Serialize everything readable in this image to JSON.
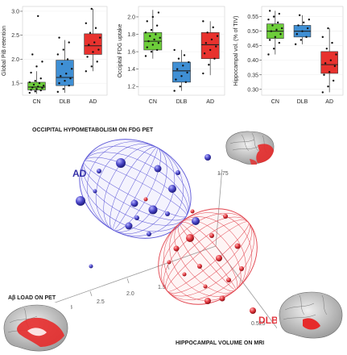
{
  "chart_data": [
    {
      "type": "box",
      "ylabel": "Global PiB retention",
      "categories": [
        "CN",
        "DLB",
        "AD"
      ],
      "yticks": [
        "1.5",
        "2.0",
        "2.5",
        "3.0"
      ],
      "ylim": [
        1.25,
        3.1
      ],
      "colors": [
        "#6dce3a",
        "#3f8fd4",
        "#e8322e"
      ],
      "boxes": [
        {
          "q1": 1.36,
          "median": 1.42,
          "q3": 1.52,
          "low": 1.28,
          "high": 1.75
        },
        {
          "q1": 1.45,
          "median": 1.62,
          "q3": 1.98,
          "low": 1.3,
          "high": 2.4
        },
        {
          "q1": 2.1,
          "median": 2.28,
          "q3": 2.53,
          "low": 1.75,
          "high": 3.05
        }
      ],
      "points": [
        [
          1.3,
          1.33,
          1.35,
          1.36,
          1.38,
          1.4,
          1.41,
          1.43,
          1.45,
          1.47,
          1.5,
          1.52,
          1.55,
          1.6,
          1.72,
          1.85,
          1.95,
          2.1,
          2.9
        ],
        [
          1.32,
          1.38,
          1.45,
          1.5,
          1.55,
          1.6,
          1.65,
          1.7,
          1.8,
          1.9,
          2.0,
          2.1,
          2.2,
          2.35,
          2.45
        ],
        [
          1.75,
          1.85,
          1.95,
          2.05,
          2.15,
          2.2,
          2.3,
          2.35,
          2.45,
          2.55,
          2.65,
          2.75,
          3.05
        ]
      ]
    },
    {
      "type": "box",
      "ylabel": "Occipital FDG uptake",
      "categories": [
        "CN",
        "DLB",
        "AD"
      ],
      "yticks": [
        "1.2",
        "1.4",
        "1.6",
        "1.8",
        "2.0"
      ],
      "ylim": [
        1.1,
        2.12
      ],
      "colors": [
        "#6dce3a",
        "#3f8fd4",
        "#e8322e"
      ],
      "boxes": [
        {
          "q1": 1.62,
          "median": 1.72,
          "q3": 1.82,
          "low": 1.52,
          "high": 2.08
        },
        {
          "q1": 1.25,
          "median": 1.38,
          "q3": 1.48,
          "low": 1.15,
          "high": 1.62
        },
        {
          "q1": 1.52,
          "median": 1.68,
          "q3": 1.82,
          "low": 1.33,
          "high": 1.95
        }
      ],
      "points": [
        [
          1.55,
          1.6,
          1.62,
          1.65,
          1.68,
          1.7,
          1.72,
          1.74,
          1.76,
          1.78,
          1.8,
          1.82,
          1.85,
          1.9,
          1.95,
          2.0,
          2.05
        ],
        [
          1.15,
          1.2,
          1.25,
          1.28,
          1.32,
          1.36,
          1.4,
          1.44,
          1.48,
          1.52,
          1.56,
          1.62
        ],
        [
          1.35,
          1.45,
          1.52,
          1.58,
          1.62,
          1.66,
          1.7,
          1.74,
          1.78,
          1.82,
          1.88,
          1.95
        ]
      ]
    },
    {
      "type": "box",
      "ylabel": "Hippocampal vol. (% of TIV)",
      "categories": [
        "CN",
        "DLB",
        "AD"
      ],
      "yticks": [
        "0.30",
        "0.35",
        "0.40",
        "0.45",
        "0.50",
        "0.55"
      ],
      "ylim": [
        0.28,
        0.585
      ],
      "colors": [
        "#6dce3a",
        "#3f8fd4",
        "#e8322e"
      ],
      "boxes": [
        {
          "q1": 0.475,
          "median": 0.5,
          "q3": 0.525,
          "low": 0.42,
          "high": 0.57
        },
        {
          "q1": 0.48,
          "median": 0.5,
          "q3": 0.52,
          "low": 0.455,
          "high": 0.555
        },
        {
          "q1": 0.355,
          "median": 0.385,
          "q3": 0.43,
          "low": 0.29,
          "high": 0.51
        }
      ],
      "points": [
        [
          0.42,
          0.44,
          0.46,
          0.47,
          0.48,
          0.49,
          0.5,
          0.505,
          0.51,
          0.52,
          0.53,
          0.54,
          0.55,
          0.56,
          0.57
        ],
        [
          0.455,
          0.47,
          0.48,
          0.49,
          0.5,
          0.51,
          0.52,
          0.53,
          0.54,
          0.555
        ],
        [
          0.29,
          0.31,
          0.33,
          0.35,
          0.36,
          0.38,
          0.39,
          0.4,
          0.42,
          0.44,
          0.46,
          0.48,
          0.51
        ]
      ]
    },
    {
      "type": "scatter3d",
      "axis_labels": {
        "fdg": "OCCIPITAL HYPOMETABOLISM ON FDG PET",
        "pib": "Aβ LOAD ON PET",
        "hippo": "HIPPOCAMPAL VOLUME ON MRI"
      },
      "group_labels": {
        "ad": "AD",
        "dlb": "DLB"
      },
      "group_colors": {
        "ad": "#4a46c8",
        "dlb": "#e2373f"
      },
      "tick_labels": [
        "1.75",
        "3",
        "2.5",
        "2.0",
        "1.5",
        "0.525"
      ]
    }
  ]
}
